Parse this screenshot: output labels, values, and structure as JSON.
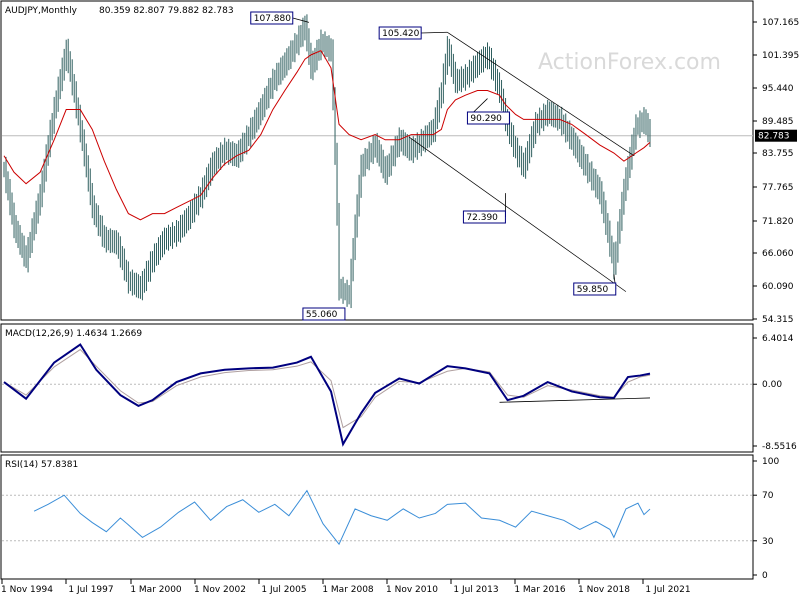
{
  "header": {
    "symbol": "AUDJPY,Monthly",
    "ohlc": "80.359 82.807 79.882 82.783"
  },
  "watermark": "ActionForex.com",
  "price_panel": {
    "y_ticks": [
      "107.165",
      "101.395",
      "95.440",
      "89.485",
      "83.755",
      "77.765",
      "71.820",
      "66.060",
      "60.090",
      "54.315"
    ],
    "current_price": "82.783",
    "callouts": [
      {
        "label": "107.880"
      },
      {
        "label": "105.420"
      },
      {
        "label": "90.290"
      },
      {
        "label": "72.390"
      },
      {
        "label": "59.850"
      },
      {
        "label": "55.060"
      }
    ]
  },
  "macd_panel": {
    "label": "MACD(12,26,9) 1.4634 1.2669",
    "y_ticks": [
      "6.4014",
      "0.00",
      "-8.5516"
    ]
  },
  "rsi_panel": {
    "label": "RSI(14) 57.8381",
    "y_ticks": [
      "100",
      "70",
      "30",
      "0"
    ]
  },
  "x_axis": {
    "labels": [
      "1 Nov 1994",
      "1 Jul 1997",
      "1 Mar 2000",
      "1 Nov 2002",
      "1 Jul 2005",
      "1 Mar 2008",
      "1 Nov 2010",
      "1 Jul 2013",
      "1 Mar 2016",
      "1 Nov 2018",
      "1 Jul 2021"
    ]
  },
  "colors": {
    "bars": "#2f5f5f",
    "ma": "#cc0000",
    "macd": "#00007f",
    "signal": "#b0a0a0",
    "rsi": "#3b8ed8",
    "callout_border": "#00007f"
  },
  "chart_data": [
    {
      "type": "line",
      "title": "AUDJPY,Monthly",
      "x": [
        "1994-11",
        "1995-04",
        "1995-10",
        "1996-05",
        "1996-12",
        "1997-06",
        "1998-01",
        "1998-07",
        "1999-01",
        "1999-07",
        "2000-01",
        "2000-07",
        "2001-01",
        "2001-07",
        "2002-01",
        "2002-07",
        "2003-01",
        "2003-07",
        "2004-01",
        "2004-07",
        "2005-01",
        "2005-07",
        "2006-01",
        "2006-07",
        "2007-01",
        "2007-05",
        "2007-08",
        "2008-01",
        "2008-06",
        "2008-10",
        "2009-03",
        "2009-09",
        "2010-04",
        "2010-09",
        "2011-04",
        "2011-10",
        "2012-04",
        "2012-09",
        "2013-01",
        "2013-04",
        "2013-08",
        "2014-01",
        "2014-07",
        "2014-12",
        "2015-06",
        "2015-09",
        "2016-02",
        "2016-06",
        "2016-12",
        "2017-06",
        "2017-12",
        "2018-06",
        "2019-01",
        "2019-08",
        "2020-03",
        "2020-08",
        "2021-02",
        "2021-06",
        "2021-09"
      ],
      "series": [
        {
          "values": [
            76.5,
            67.0,
            62.0,
            72.0,
            88.0,
            101.0,
            84.0,
            70.0,
            65.0,
            64.5,
            59.0,
            58.0,
            62.0,
            65.0,
            66.0,
            68.5,
            72.0,
            77.5,
            80.0,
            79.0,
            83.0,
            88.0,
            94.0,
            98.0,
            103.0,
            107.0,
            97.0,
            103.0,
            101.0,
            58.0,
            57.0,
            77.0,
            81.0,
            76.0,
            82.0,
            80.0,
            82.0,
            84.0,
            92.0,
            101.5,
            94.0,
            95.0,
            98.0,
            100.0,
            92.0,
            86.0,
            80.0,
            77.0,
            85.0,
            87.5,
            86.0,
            82.0,
            77.0,
            72.5,
            61.0,
            73.0,
            84.5,
            86.0,
            82.8
          ]
        },
        {
          "name": "",
          "values": [
            79.0,
            76.0,
            74.0,
            76.0,
            82.0,
            88.0,
            88.0,
            84.0,
            78.0,
            73.0,
            69.0,
            68.0,
            69.0,
            69.0,
            70.0,
            71.0,
            72.0,
            75.0,
            77.5,
            79.0,
            80.0,
            83.0,
            88.0,
            92.0,
            96.0,
            99.0,
            100.0,
            101.0,
            97.0,
            85.0,
            83.0,
            82.0,
            83.0,
            82.0,
            82.0,
            83.0,
            83.0,
            83.0,
            84.0,
            88.0,
            90.0,
            91.0,
            92.0,
            92.0,
            91.0,
            89.0,
            87.0,
            86.0,
            86.0,
            86.0,
            86.0,
            85.0,
            83.0,
            81.0,
            79.5,
            78.0,
            79.5,
            80.5,
            81.5
          ]
        }
      ],
      "annotations": [
        {
          "label": "107.880",
          "x": "2007-07",
          "y": 107.88
        },
        {
          "label": "105.420",
          "x": "2013-04",
          "y": 105.42
        },
        {
          "label": "90.290",
          "x": "2014-12",
          "y": 90.29
        },
        {
          "label": "72.390",
          "x": "2015-09",
          "y": 72.39
        },
        {
          "label": "59.850",
          "x": "2020-03",
          "y": 59.85
        },
        {
          "label": "55.060",
          "x": "2008-10",
          "y": 55.06
        }
      ],
      "ylim": [
        54.315,
        109.0
      ],
      "current_value": 82.783
    },
    {
      "type": "line",
      "title": "MACD(12,26,9) 1.4634 1.2669",
      "x": [
        "1994-11",
        "1995-10",
        "1996-12",
        "1998-01",
        "1998-09",
        "1999-09",
        "2000-06",
        "2001-01",
        "2002-01",
        "2003-01",
        "2004-01",
        "2005-01",
        "2006-01",
        "2007-01",
        "2007-08",
        "2008-06",
        "2008-12",
        "2009-09",
        "2010-04",
        "2011-04",
        "2012-02",
        "2013-04",
        "2014-01",
        "2015-01",
        "2015-10",
        "2016-06",
        "2017-06",
        "2018-06",
        "2019-08",
        "2020-03",
        "2020-10",
        "2021-04",
        "2021-09"
      ],
      "series": [
        {
          "values": [
            0.3,
            -2.0,
            3.0,
            5.5,
            2.0,
            -1.5,
            -3.0,
            -2.2,
            0.3,
            1.5,
            2.0,
            2.2,
            2.3,
            3.0,
            3.8,
            -1.0,
            -8.3,
            -4.0,
            -1.2,
            0.8,
            0.1,
            2.5,
            2.2,
            1.5,
            -2.2,
            -1.6,
            0.3,
            -1.0,
            -1.8,
            -1.9,
            1.0,
            1.2,
            1.4634
          ]
        },
        {
          "values": [
            0.3,
            -1.5,
            2.4,
            4.8,
            2.5,
            -0.9,
            -2.6,
            -2.4,
            -0.2,
            1.0,
            1.6,
            1.9,
            2.0,
            2.5,
            3.1,
            0.5,
            -6.0,
            -4.5,
            -1.8,
            0.4,
            0.2,
            1.8,
            2.2,
            1.7,
            -1.5,
            -1.8,
            -0.2,
            -0.8,
            -1.6,
            -1.8,
            0.3,
            1.0,
            1.2669
          ]
        }
      ],
      "ylim": [
        -8.5516,
        6.4014
      ]
    },
    {
      "type": "line",
      "title": "RSI(14) 57.8381",
      "x": [
        "1996-02",
        "1996-09",
        "1997-05",
        "1998-01",
        "1998-07",
        "1999-02",
        "1999-09",
        "2000-01",
        "2000-08",
        "2001-05",
        "2002-02",
        "2002-10",
        "2003-06",
        "2004-02",
        "2004-10",
        "2005-06",
        "2006-02",
        "2006-09",
        "2007-06",
        "2008-02",
        "2008-10",
        "2009-06",
        "2010-02",
        "2010-10",
        "2011-06",
        "2012-02",
        "2012-10",
        "2013-04",
        "2014-01",
        "2014-09",
        "2015-06",
        "2016-02",
        "2016-10",
        "2017-06",
        "2018-02",
        "2018-10",
        "2019-06",
        "2020-01",
        "2020-03",
        "2020-09",
        "2021-03",
        "2021-06",
        "2021-09"
      ],
      "series": [
        {
          "values": [
            56,
            62,
            70,
            54,
            46,
            38,
            50,
            44,
            33,
            42,
            55,
            64,
            48,
            60,
            66,
            55,
            62,
            52,
            74,
            45,
            27,
            58,
            52,
            48,
            58,
            50,
            54,
            62,
            63,
            50,
            48,
            42,
            56,
            52,
            48,
            40,
            47,
            40,
            33,
            58,
            63,
            53,
            57.8381
          ]
        }
      ],
      "y_reference_lines": [
        70,
        30
      ],
      "ylim": [
        0,
        100
      ]
    }
  ]
}
